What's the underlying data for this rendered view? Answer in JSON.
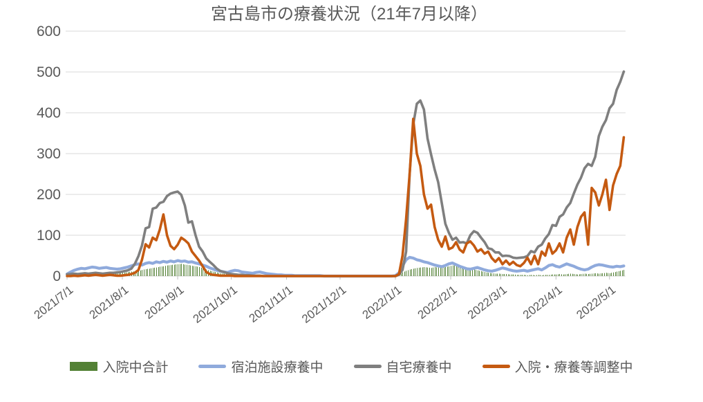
{
  "chart_data": {
    "type": "mixed",
    "title": "宮古島市の療養状況（21年7月以降）",
    "xlabel": "",
    "ylabel": "",
    "ylim": [
      0,
      600
    ],
    "y_ticks": [
      0,
      100,
      200,
      300,
      400,
      500,
      600
    ],
    "grid": true,
    "legend_position": "bottom",
    "x_start_date": "2021/7/1",
    "x_total_days": 313,
    "sample_step_days": 2,
    "x_tick_labels": [
      "2021/7/1",
      "2021/8/1",
      "2021/9/1",
      "2021/10/1",
      "2021/11/1",
      "2021/12/1",
      "2022/1/1",
      "2022/2/1",
      "2022/3/1",
      "2022/4/1",
      "2022/5/1"
    ],
    "x_tick_day_offsets": [
      0,
      31,
      62,
      92,
      123,
      153,
      184,
      215,
      243,
      274,
      304
    ],
    "series": [
      {
        "name": "入院中合計",
        "type": "bar",
        "color": "#538135",
        "values": [
          2,
          3,
          4,
          5,
          5,
          6,
          6,
          7,
          6,
          5,
          6,
          7,
          6,
          7,
          8,
          8,
          9,
          10,
          11,
          12,
          13,
          15,
          17,
          18,
          20,
          21,
          23,
          24,
          26,
          27,
          28,
          29,
          30,
          28,
          27,
          25,
          24,
          22,
          19,
          16,
          13,
          11,
          9,
          7,
          6,
          5,
          4,
          4,
          3,
          3,
          2,
          2,
          2,
          1,
          1,
          1,
          1,
          0,
          0,
          0,
          0,
          0,
          0,
          0,
          0,
          0,
          0,
          0,
          0,
          0,
          0,
          0,
          0,
          0,
          0,
          0,
          0,
          0,
          0,
          0,
          0,
          0,
          0,
          0,
          0,
          0,
          0,
          0,
          0,
          0,
          0,
          0,
          0,
          4,
          9,
          13,
          16,
          18,
          20,
          21,
          22,
          21,
          20,
          22,
          21,
          23,
          22,
          24,
          26,
          27,
          25,
          23,
          20,
          18,
          16,
          14,
          12,
          10,
          8,
          7,
          6,
          6,
          5,
          5,
          4,
          4,
          3,
          3,
          3,
          2,
          3,
          2,
          3,
          2,
          3,
          3,
          4,
          4,
          5,
          4,
          5,
          6,
          5,
          4,
          5,
          6,
          5,
          6,
          7,
          6,
          7,
          8,
          7,
          9,
          11,
          13,
          15
        ]
      },
      {
        "name": "宿泊施設療養中",
        "type": "line",
        "color": "#8faadc",
        "values": [
          5,
          10,
          14,
          17,
          19,
          18,
          20,
          22,
          21,
          19,
          20,
          21,
          19,
          18,
          17,
          18,
          20,
          22,
          25,
          28,
          30,
          27,
          31,
          33,
          31,
          35,
          33,
          36,
          34,
          37,
          35,
          38,
          36,
          37,
          34,
          35,
          32,
          30,
          27,
          24,
          20,
          17,
          14,
          12,
          10,
          9,
          12,
          14,
          13,
          10,
          9,
          8,
          7,
          9,
          10,
          8,
          6,
          5,
          4,
          3,
          3,
          2,
          2,
          2,
          1,
          1,
          1,
          1,
          1,
          1,
          1,
          1,
          0,
          0,
          0,
          0,
          0,
          0,
          0,
          0,
          0,
          0,
          0,
          0,
          0,
          0,
          0,
          0,
          0,
          0,
          0,
          0,
          1,
          8,
          25,
          40,
          46,
          44,
          40,
          38,
          35,
          33,
          30,
          27,
          25,
          23,
          26,
          30,
          32,
          28,
          24,
          21,
          18,
          17,
          19,
          21,
          18,
          15,
          13,
          12,
          14,
          17,
          20,
          18,
          15,
          13,
          12,
          13,
          14,
          12,
          14,
          16,
          18,
          15,
          20,
          26,
          28,
          24,
          22,
          26,
          30,
          27,
          24,
          20,
          17,
          15,
          17,
          22,
          26,
          28,
          27,
          25,
          23,
          22,
          24,
          23,
          25
        ]
      },
      {
        "name": "自宅療養中",
        "type": "line",
        "color": "#7f7f7f",
        "values": [
          4,
          5,
          6,
          5,
          6,
          7,
          6,
          7,
          8,
          7,
          6,
          7,
          8,
          8,
          9,
          10,
          12,
          14,
          18,
          30,
          49,
          75,
          117,
          120,
          165,
          168,
          179,
          182,
          196,
          202,
          205,
          207,
          199,
          173,
          131,
          134,
          100,
          72,
          60,
          43,
          35,
          27,
          18,
          12,
          10,
          7,
          5,
          4,
          3,
          3,
          2,
          2,
          1,
          1,
          1,
          0,
          0,
          0,
          0,
          0,
          0,
          0,
          0,
          0,
          0,
          0,
          0,
          0,
          0,
          0,
          0,
          0,
          0,
          0,
          0,
          0,
          0,
          0,
          0,
          0,
          0,
          0,
          0,
          0,
          0,
          0,
          0,
          0,
          0,
          0,
          0,
          0,
          0,
          3,
          15,
          60,
          250,
          371,
          422,
          430,
          408,
          337,
          298,
          261,
          230,
          179,
          128,
          106,
          89,
          94,
          82,
          83,
          80,
          100,
          110,
          106,
          94,
          83,
          68,
          66,
          58,
          58,
          49,
          50,
          49,
          45,
          44,
          45,
          46,
          49,
          61,
          58,
          72,
          77,
          92,
          103,
          125,
          123,
          145,
          151,
          168,
          179,
          202,
          224,
          241,
          264,
          275,
          270,
          292,
          343,
          366,
          382,
          411,
          422,
          456,
          476,
          501
        ]
      },
      {
        "name": "入院・療養等調整中",
        "type": "line",
        "color": "#c55a11",
        "values": [
          0,
          0,
          1,
          0,
          1,
          2,
          1,
          2,
          3,
          2,
          1,
          2,
          3,
          2,
          1,
          1,
          2,
          3,
          5,
          8,
          15,
          40,
          78,
          70,
          94,
          88,
          114,
          151,
          100,
          74,
          66,
          77,
          94,
          88,
          80,
          60,
          49,
          38,
          24,
          10,
          5,
          3,
          2,
          1,
          1,
          1,
          1,
          0,
          0,
          0,
          0,
          0,
          0,
          0,
          0,
          0,
          0,
          0,
          0,
          0,
          0,
          0,
          0,
          0,
          0,
          0,
          0,
          0,
          0,
          0,
          0,
          0,
          0,
          0,
          0,
          0,
          0,
          0,
          0,
          0,
          0,
          0,
          0,
          0,
          0,
          0,
          0,
          0,
          0,
          0,
          0,
          0,
          0,
          5,
          50,
          140,
          250,
          385,
          300,
          270,
          200,
          165,
          175,
          120,
          89,
          72,
          97,
          66,
          70,
          83,
          65,
          58,
          80,
          85,
          75,
          60,
          66,
          55,
          60,
          44,
          35,
          44,
          29,
          38,
          28,
          35,
          27,
          24,
          32,
          45,
          29,
          50,
          29,
          60,
          50,
          80,
          55,
          63,
          80,
          58,
          94,
          114,
          77,
          120,
          145,
          156,
          77,
          216,
          205,
          173,
          200,
          236,
          162,
          222,
          250,
          270,
          340
        ]
      }
    ],
    "style": {
      "grid_color": "#d9d9d9",
      "axis_text_color": "#595959",
      "title_color": "#595959"
    }
  }
}
